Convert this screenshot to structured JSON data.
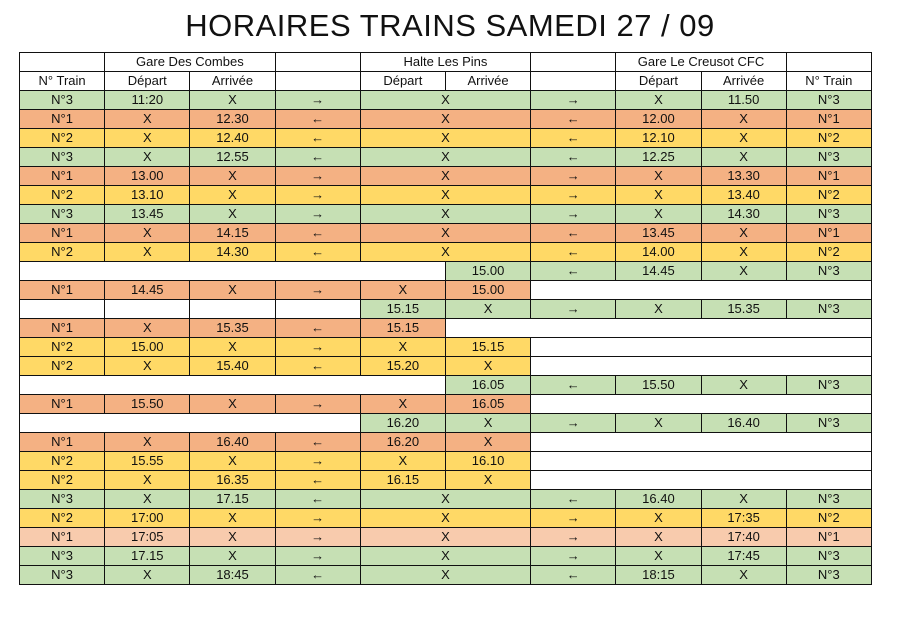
{
  "title": "HORAIRES TRAINS SAMEDI 27 / 09",
  "colors": {
    "g": "#c6e0b4",
    "o": "#f4b183",
    "y": "#ffd966",
    "p": "#f8cbad",
    "w": "#ffffff"
  },
  "header_rows": [
    [
      {
        "t": "",
        "s": 1
      },
      {
        "t": "Gare Des Combes",
        "s": 2
      },
      {
        "t": "",
        "s": 1
      },
      {
        "t": "Halte Les Pins",
        "s": 2
      },
      {
        "t": "",
        "s": 1
      },
      {
        "t": "Gare Le Creusot CFC",
        "s": 2
      },
      {
        "t": "",
        "s": 1
      }
    ],
    [
      {
        "t": "N° Train",
        "s": 1
      },
      {
        "t": "Départ",
        "s": 1
      },
      {
        "t": "Arrivée",
        "s": 1
      },
      {
        "t": "",
        "s": 1
      },
      {
        "t": "Départ",
        "s": 1
      },
      {
        "t": "Arrivée",
        "s": 1
      },
      {
        "t": "",
        "s": 1
      },
      {
        "t": "Départ",
        "s": 1
      },
      {
        "t": "Arrivée",
        "s": 1
      },
      {
        "t": "N° Train",
        "s": 1
      }
    ]
  ],
  "rows": [
    [
      [
        "N°3",
        "g"
      ],
      [
        "11:20",
        "g"
      ],
      [
        "X",
        "g"
      ],
      [
        "→",
        "g"
      ],
      [
        "X",
        "g",
        2
      ],
      [
        "→",
        "g"
      ],
      [
        "X",
        "g"
      ],
      [
        "11.50",
        "g"
      ],
      [
        "N°3",
        "g"
      ]
    ],
    [
      [
        "N°1",
        "o"
      ],
      [
        "X",
        "o"
      ],
      [
        "12.30",
        "o"
      ],
      [
        "←",
        "o"
      ],
      [
        "X",
        "o",
        2
      ],
      [
        "←",
        "o"
      ],
      [
        "12.00",
        "o"
      ],
      [
        "X",
        "o"
      ],
      [
        "N°1",
        "o"
      ]
    ],
    [
      [
        "N°2",
        "y"
      ],
      [
        "X",
        "y"
      ],
      [
        "12.40",
        "y"
      ],
      [
        "←",
        "y"
      ],
      [
        "X",
        "y",
        2
      ],
      [
        "←",
        "y"
      ],
      [
        "12.10",
        "y"
      ],
      [
        "X",
        "y"
      ],
      [
        "N°2",
        "y"
      ]
    ],
    [
      [
        "N°3",
        "g"
      ],
      [
        "X",
        "g"
      ],
      [
        "12.55",
        "g"
      ],
      [
        "←",
        "g"
      ],
      [
        "X",
        "g",
        2
      ],
      [
        "←",
        "g"
      ],
      [
        "12.25",
        "g"
      ],
      [
        "X",
        "g"
      ],
      [
        "N°3",
        "g"
      ]
    ],
    [
      [
        "N°1",
        "o"
      ],
      [
        "13.00",
        "o"
      ],
      [
        "X",
        "o"
      ],
      [
        "→",
        "o"
      ],
      [
        "X",
        "o",
        2
      ],
      [
        "→",
        "o"
      ],
      [
        "X",
        "o"
      ],
      [
        "13.30",
        "o"
      ],
      [
        "N°1",
        "o"
      ]
    ],
    [
      [
        "N°2",
        "y"
      ],
      [
        "13.10",
        "y"
      ],
      [
        "X",
        "y"
      ],
      [
        "→",
        "y"
      ],
      [
        "X",
        "y",
        2
      ],
      [
        "→",
        "y"
      ],
      [
        "X",
        "y"
      ],
      [
        "13.40",
        "y"
      ],
      [
        "N°2",
        "y"
      ]
    ],
    [
      [
        "N°3",
        "g"
      ],
      [
        "13.45",
        "g"
      ],
      [
        "X",
        "g"
      ],
      [
        "→",
        "g"
      ],
      [
        "X",
        "g",
        2
      ],
      [
        "→",
        "g"
      ],
      [
        "X",
        "g"
      ],
      [
        "14.30",
        "g"
      ],
      [
        "N°3",
        "g"
      ]
    ],
    [
      [
        "N°1",
        "o"
      ],
      [
        "X",
        "o"
      ],
      [
        "14.15",
        "o"
      ],
      [
        "←",
        "o"
      ],
      [
        "X",
        "o",
        2
      ],
      [
        "←",
        "o"
      ],
      [
        "13.45",
        "o"
      ],
      [
        "X",
        "o"
      ],
      [
        "N°1",
        "o"
      ]
    ],
    [
      [
        "N°2",
        "y"
      ],
      [
        "X",
        "y"
      ],
      [
        "14.30",
        "y"
      ],
      [
        "←",
        "y"
      ],
      [
        "X",
        "y",
        2
      ],
      [
        "←",
        "y"
      ],
      [
        "14.00",
        "y"
      ],
      [
        "X",
        "y"
      ],
      [
        "N°2",
        "y"
      ]
    ],
    [
      [
        "",
        "w",
        5
      ],
      [
        "15.00",
        "g"
      ],
      [
        "←",
        "g"
      ],
      [
        "14.45",
        "g"
      ],
      [
        "X",
        "g"
      ],
      [
        "N°3",
        "g"
      ]
    ],
    [
      [
        "N°1",
        "o"
      ],
      [
        "14.45",
        "o"
      ],
      [
        "X",
        "o"
      ],
      [
        "→",
        "o"
      ],
      [
        "X",
        "o"
      ],
      [
        "15.00",
        "o"
      ],
      [
        "",
        "w",
        4
      ]
    ],
    [
      [
        "",
        "w"
      ],
      [
        "",
        "w"
      ],
      [
        "",
        "w"
      ],
      [
        "",
        "w"
      ],
      [
        "15.15",
        "g"
      ],
      [
        "X",
        "g"
      ],
      [
        "→",
        "g"
      ],
      [
        "X",
        "g"
      ],
      [
        "15.35",
        "g"
      ],
      [
        "N°3",
        "g"
      ]
    ],
    [
      [
        "N°1",
        "o"
      ],
      [
        "X",
        "o"
      ],
      [
        "15.35",
        "o"
      ],
      [
        "←",
        "o"
      ],
      [
        "15.15",
        "o"
      ],
      [
        "",
        "w",
        5
      ]
    ],
    [
      [
        "N°2",
        "y"
      ],
      [
        "15.00",
        "y"
      ],
      [
        "X",
        "y"
      ],
      [
        "→",
        "y"
      ],
      [
        "X",
        "y"
      ],
      [
        "15.15",
        "y"
      ],
      [
        "",
        "w",
        4
      ]
    ],
    [
      [
        "N°2",
        "y"
      ],
      [
        "X",
        "y"
      ],
      [
        "15.40",
        "y"
      ],
      [
        "←",
        "y"
      ],
      [
        "15.20",
        "y"
      ],
      [
        "X",
        "y"
      ],
      [
        "",
        "w",
        4
      ]
    ],
    [
      [
        "",
        "w",
        5
      ],
      [
        "16.05",
        "g"
      ],
      [
        "←",
        "g"
      ],
      [
        "15.50",
        "g"
      ],
      [
        "X",
        "g"
      ],
      [
        "N°3",
        "g"
      ]
    ],
    [
      [
        "N°1",
        "o"
      ],
      [
        "15.50",
        "o"
      ],
      [
        "X",
        "o"
      ],
      [
        "→",
        "o"
      ],
      [
        "X",
        "o"
      ],
      [
        "16.05",
        "o"
      ],
      [
        "",
        "w",
        4
      ]
    ],
    [
      [
        "",
        "w",
        4
      ],
      [
        "16.20",
        "g"
      ],
      [
        "X",
        "g"
      ],
      [
        "→",
        "g"
      ],
      [
        "X",
        "g"
      ],
      [
        "16.40",
        "g"
      ],
      [
        "N°3",
        "g"
      ]
    ],
    [
      [
        "N°1",
        "o"
      ],
      [
        "X",
        "o"
      ],
      [
        "16.40",
        "o"
      ],
      [
        "←",
        "o"
      ],
      [
        "16.20",
        "o"
      ],
      [
        "X",
        "o"
      ],
      [
        "",
        "w",
        4
      ]
    ],
    [
      [
        "N°2",
        "y"
      ],
      [
        "15.55",
        "y"
      ],
      [
        "X",
        "y"
      ],
      [
        "→",
        "y"
      ],
      [
        "X",
        "y"
      ],
      [
        "16.10",
        "y"
      ],
      [
        "",
        "w",
        4
      ]
    ],
    [
      [
        "N°2",
        "y"
      ],
      [
        "X",
        "y"
      ],
      [
        "16.35",
        "y"
      ],
      [
        "←",
        "y"
      ],
      [
        "16.15",
        "y"
      ],
      [
        "X",
        "y"
      ],
      [
        "",
        "w",
        4
      ]
    ],
    [
      [
        "N°3",
        "g"
      ],
      [
        "X",
        "g"
      ],
      [
        "17.15",
        "g"
      ],
      [
        "←",
        "g"
      ],
      [
        "X",
        "g",
        2
      ],
      [
        "←",
        "g"
      ],
      [
        "16.40",
        "g"
      ],
      [
        "X",
        "g"
      ],
      [
        "N°3",
        "g"
      ]
    ],
    [
      [
        "N°2",
        "y"
      ],
      [
        "17:00",
        "y"
      ],
      [
        "X",
        "y"
      ],
      [
        "→",
        "y"
      ],
      [
        "X",
        "y",
        2
      ],
      [
        "→",
        "y"
      ],
      [
        "X",
        "y"
      ],
      [
        "17:35",
        "y"
      ],
      [
        "N°2",
        "y"
      ]
    ],
    [
      [
        "N°1",
        "p"
      ],
      [
        "17:05",
        "p"
      ],
      [
        "X",
        "p"
      ],
      [
        "→",
        "p"
      ],
      [
        "X",
        "p",
        2
      ],
      [
        "→",
        "p"
      ],
      [
        "X",
        "p"
      ],
      [
        "17:40",
        "p"
      ],
      [
        "N°1",
        "p"
      ]
    ],
    [
      [
        "N°3",
        "g"
      ],
      [
        "17.15",
        "g"
      ],
      [
        "X",
        "g"
      ],
      [
        "→",
        "g"
      ],
      [
        "X",
        "g",
        2
      ],
      [
        "→",
        "g"
      ],
      [
        "X",
        "g"
      ],
      [
        "17:45",
        "g"
      ],
      [
        "N°3",
        "g"
      ]
    ],
    [
      [
        "N°3",
        "g"
      ],
      [
        "X",
        "g"
      ],
      [
        "18:45",
        "g"
      ],
      [
        "←",
        "g"
      ],
      [
        "X",
        "g",
        2
      ],
      [
        "←",
        "g"
      ],
      [
        "18:15",
        "g"
      ],
      [
        "X",
        "g"
      ],
      [
        "N°3",
        "g"
      ]
    ]
  ]
}
